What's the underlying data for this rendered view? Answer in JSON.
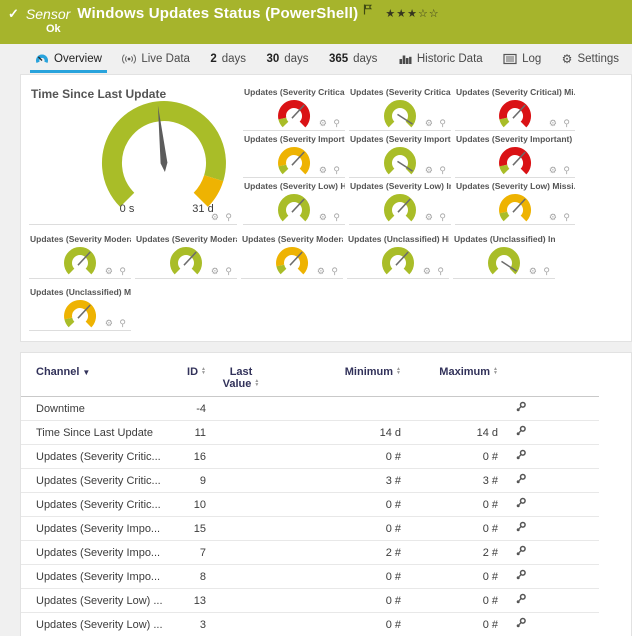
{
  "colors": {
    "header_bg": "#a6b42c",
    "gauge_green": "#a9bd28",
    "gauge_yellow": "#eeb302",
    "gauge_red": "#da1215",
    "tab_accent_blue": "#28a3dc",
    "table_header_navy": "#32325a"
  },
  "header": {
    "check": "✓",
    "kind": "Sensor",
    "title": "Windows Updates Status (PowerShell)",
    "status": "Ok",
    "stars_filled": "★★★",
    "stars_empty": "☆☆"
  },
  "tabs": [
    {
      "label": "Overview",
      "icon": "gauge-icon",
      "active": true
    },
    {
      "label": "Live Data",
      "icon": "live-icon",
      "active": false
    },
    {
      "prefix": "2",
      "label": "days",
      "active": false
    },
    {
      "prefix": "30",
      "label": "days",
      "active": false
    },
    {
      "prefix": "365",
      "label": "days",
      "active": false
    },
    {
      "label": "Historic Data",
      "icon": "chart-icon",
      "active": false
    },
    {
      "label": "Log",
      "icon": "log-icon",
      "active": false
    },
    {
      "label": "Settings",
      "icon": "settings-icon",
      "active": false
    }
  ],
  "overview": {
    "big_gauge": {
      "title": "Time Since Last Update",
      "min_label": "0 s",
      "max_label": "31 d",
      "needle_deg": 96,
      "segments": [
        {
          "color": "green",
          "from": 225,
          "to": -17
        },
        {
          "color": "yellow",
          "from": -17,
          "to": -45
        }
      ]
    },
    "small_gauges": [
      {
        "label": "Updates (Severity Critical) Hi...",
        "pattern": "green-red",
        "needle": "ne"
      },
      {
        "label": "Updates (Severity Critical) Ins...",
        "pattern": "green",
        "needle": "se"
      },
      {
        "label": "Updates (Severity Critical) Mi...",
        "pattern": "green-red",
        "needle": "ne"
      },
      {
        "label": "Updates (Severity Important) ...",
        "pattern": "green-yellow",
        "needle": "ne"
      },
      {
        "label": "Updates (Severity Important) ...",
        "pattern": "green",
        "needle": "se"
      },
      {
        "label": "Updates (Severity Important) ...",
        "pattern": "green-red",
        "needle": "ne"
      },
      {
        "label": "Updates (Severity Low) Hidden",
        "pattern": "green",
        "needle": "ne"
      },
      {
        "label": "Updates (Severity Low) Install...",
        "pattern": "green",
        "needle": "ne"
      },
      {
        "label": "Updates (Severity Low) Missi...",
        "pattern": "green-yellow",
        "needle": "ne"
      },
      {
        "label": "Updates (Severity Moderate) ...",
        "pattern": "green",
        "needle": "ne"
      },
      {
        "label": "Updates (Severity Moderate) I...",
        "pattern": "green",
        "needle": "ne"
      },
      {
        "label": "Updates (Severity Moderate) ...",
        "pattern": "green-yellow",
        "needle": "ne"
      },
      {
        "label": "Updates (Unclassified) Hidden",
        "pattern": "green",
        "needle": "ne"
      },
      {
        "label": "Updates (Unclassified) Install...",
        "pattern": "green",
        "needle": "se"
      },
      {
        "label": "Updates (Unclassified) Missing",
        "pattern": "green-yellow",
        "needle": "ne"
      }
    ],
    "gauge_footer_icons": "⚙ ⚲"
  },
  "table": {
    "headers": {
      "channel": "Channel",
      "id": "ID",
      "last_value_line1": "Last",
      "last_value_line2": "Value",
      "minimum": "Minimum",
      "maximum": "Maximum"
    },
    "rows": [
      {
        "channel": "Downtime",
        "id": "-4",
        "last": "",
        "min": "",
        "max": ""
      },
      {
        "channel": "Time Since Last Update",
        "id": "11",
        "last": "",
        "min": "14 d",
        "max": "14 d"
      },
      {
        "channel": "Updates (Severity Critic...",
        "id": "16",
        "last": "",
        "min": "0 #",
        "max": "0 #"
      },
      {
        "channel": "Updates (Severity Critic...",
        "id": "9",
        "last": "",
        "min": "3 #",
        "max": "3 #"
      },
      {
        "channel": "Updates (Severity Critic...",
        "id": "10",
        "last": "",
        "min": "0 #",
        "max": "0 #"
      },
      {
        "channel": "Updates (Severity Impo...",
        "id": "15",
        "last": "",
        "min": "0 #",
        "max": "0 #"
      },
      {
        "channel": "Updates (Severity Impo...",
        "id": "7",
        "last": "",
        "min": "2 #",
        "max": "2 #"
      },
      {
        "channel": "Updates (Severity Impo...",
        "id": "8",
        "last": "",
        "min": "0 #",
        "max": "0 #"
      },
      {
        "channel": "Updates (Severity Low) ...",
        "id": "13",
        "last": "",
        "min": "0 #",
        "max": "0 #"
      },
      {
        "channel": "Updates (Severity Low) ...",
        "id": "3",
        "last": "",
        "min": "0 #",
        "max": "0 #"
      }
    ]
  }
}
